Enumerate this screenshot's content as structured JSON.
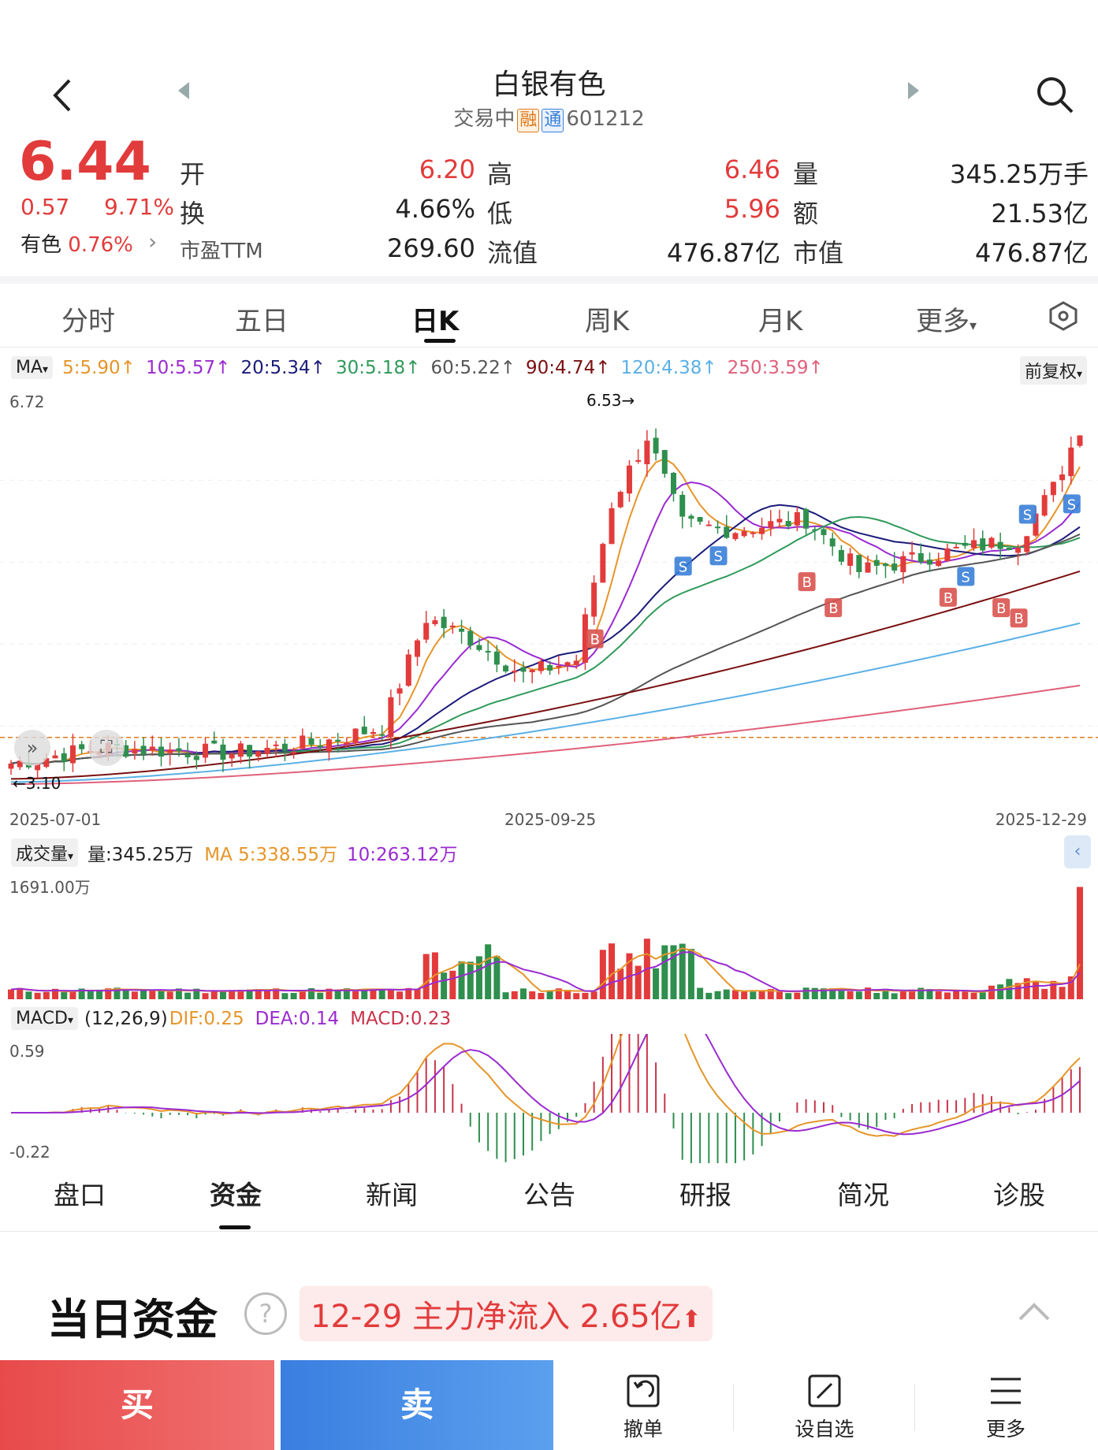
{
  "header": {
    "stock_name": "白银有色",
    "status": "交易中",
    "tag_rong": "融",
    "tag_tong": "通",
    "code": "601212"
  },
  "quote": {
    "price": "6.44",
    "change": "0.57",
    "change_pct": "9.71%",
    "sector_label": "有色",
    "sector_pct": "0.76%",
    "pe_label": "市盈TTM",
    "pe_value": "269.60",
    "rows": [
      {
        "l1": "开",
        "v1": "6.20",
        "l2": "高",
        "v2": "6.46",
        "l3": "量",
        "v3": "345.25万手"
      },
      {
        "l1": "换",
        "v1": "4.66%",
        "l2": "低",
        "v2": "5.96",
        "l3": "额",
        "v3": "21.53亿"
      },
      {
        "l2": "流值",
        "v2": "476.87亿",
        "l3": "市值",
        "v3": "476.87亿"
      }
    ]
  },
  "period_tabs": [
    "分时",
    "五日",
    "日K",
    "周K",
    "月K",
    "更多"
  ],
  "active_period": "日K",
  "ma_bar": {
    "selector": "MA",
    "items": [
      {
        "label": "5:5.90",
        "color": "#e6952a"
      },
      {
        "label": "10:5.57",
        "color": "#9a2bd1"
      },
      {
        "label": "20:5.34",
        "color": "#1b1b7a"
      },
      {
        "label": "30:5.18",
        "color": "#2f9a5a"
      },
      {
        "label": "60:5.22",
        "color": "#555555"
      },
      {
        "label": "90:4.74",
        "color": "#7a1010"
      },
      {
        "label": "120:4.38",
        "color": "#5ab0e6"
      },
      {
        "label": "250:3.59",
        "color": "#e0607a"
      }
    ],
    "adjust": "前复权"
  },
  "kline": {
    "y_max_label": "6.72",
    "high_marker": "6.53",
    "low_marker": "3.10",
    "x_labels": [
      "2025-07-01",
      "2025-09-25",
      "2025-12-29"
    ]
  },
  "volume": {
    "selector": "成交量",
    "vol": "量:345.25万",
    "ma5": "MA 5:338.55万",
    "ma10": "10:263.12万",
    "max_label": "1691.00万"
  },
  "macd": {
    "selector": "MACD",
    "params": "(12,26,9)",
    "dif": "DIF:0.25",
    "dea": "DEA:0.14",
    "macd": "MACD:0.23",
    "max_label": "0.59",
    "min_label": "-0.22"
  },
  "bottom_tabs": [
    "盘口",
    "资金",
    "新闻",
    "公告",
    "研报",
    "简况",
    "诊股"
  ],
  "active_bottom": "资金",
  "fund": {
    "title": "当日资金",
    "summary": "12-29 主力净流入 2.65亿"
  },
  "footer": {
    "buy": "买",
    "sell": "卖",
    "cancel": "撤单",
    "watch": "设自选",
    "more": "更多"
  },
  "colors": {
    "up": "#e23b3b",
    "down": "#2f8f4e",
    "buy": "#ee5b5b",
    "sell": "#3d86e0"
  }
}
